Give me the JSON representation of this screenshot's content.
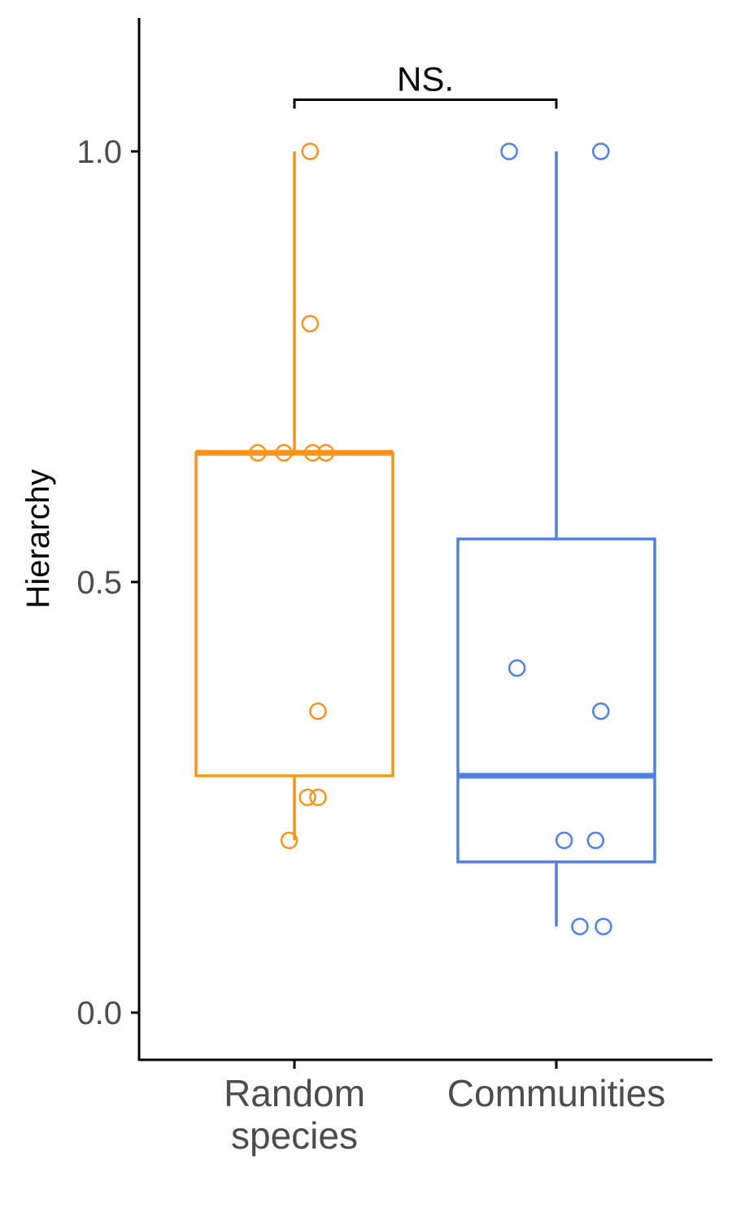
{
  "chart_data": {
    "type": "box",
    "ylabel": "Hierarchy",
    "xlabel": "",
    "ylim": [
      -0.05,
      1.2
    ],
    "yticks": [
      {
        "value": 0.0,
        "label": "0.0"
      },
      {
        "value": 0.5,
        "label": "0.5"
      },
      {
        "value": 1.0,
        "label": "1.0"
      }
    ],
    "categories": [
      "Random species",
      "Communities"
    ],
    "category_lines": [
      [
        "Random",
        "species"
      ],
      [
        "Communities"
      ]
    ],
    "colors": [
      "#f7941d",
      "#5080e0"
    ],
    "boxes": [
      {
        "category": "Random species",
        "whisker_low": 0.2,
        "q1": 0.275,
        "median": 0.65,
        "q3": 0.65,
        "whisker_high": 1.0
      },
      {
        "category": "Communities",
        "whisker_low": 0.1,
        "q1": 0.175,
        "median": 0.275,
        "q3": 0.55,
        "whisker_high": 1.0
      }
    ],
    "points": [
      [
        {
          "jitter": 0.06,
          "y": 1.0
        },
        {
          "jitter": 0.06,
          "y": 0.8
        },
        {
          "jitter": -0.14,
          "y": 0.65
        },
        {
          "jitter": -0.04,
          "y": 0.65
        },
        {
          "jitter": 0.07,
          "y": 0.65
        },
        {
          "jitter": 0.12,
          "y": 0.65
        },
        {
          "jitter": 0.09,
          "y": 0.35
        },
        {
          "jitter": 0.05,
          "y": 0.25
        },
        {
          "jitter": 0.09,
          "y": 0.25
        },
        {
          "jitter": -0.02,
          "y": 0.2
        }
      ],
      [
        {
          "jitter": -0.18,
          "y": 1.0
        },
        {
          "jitter": 0.17,
          "y": 1.0
        },
        {
          "jitter": -0.15,
          "y": 0.4
        },
        {
          "jitter": 0.17,
          "y": 0.35
        },
        {
          "jitter": 0.03,
          "y": 0.2
        },
        {
          "jitter": 0.15,
          "y": 0.2
        },
        {
          "jitter": 0.09,
          "y": 0.1
        },
        {
          "jitter": 0.18,
          "y": 0.1
        }
      ]
    ],
    "significance": {
      "label": "NS.",
      "y": 1.06,
      "between": [
        "Random species",
        "Communities"
      ]
    }
  }
}
